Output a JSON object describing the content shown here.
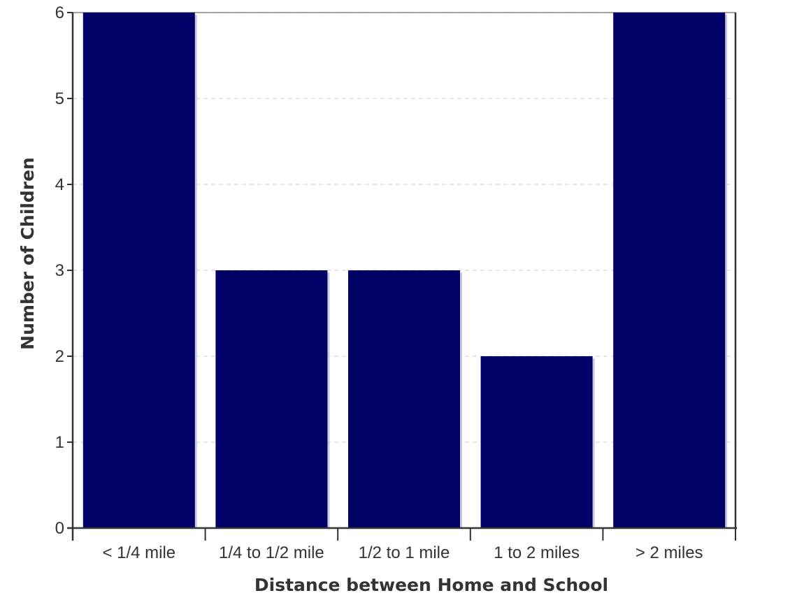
{
  "chart_data": {
    "type": "bar",
    "categories": [
      "< 1/4 mile",
      "1/4 to 1/2 mile",
      "1/2 to 1 mile",
      "1 to 2 miles",
      "> 2 miles"
    ],
    "values": [
      6,
      3,
      3,
      2,
      6
    ],
    "title": "",
    "xlabel": "Distance between Home and School",
    "ylabel": "Number of Children",
    "ylim": [
      0,
      6
    ],
    "yticks": [
      0,
      1,
      2,
      3,
      4,
      5,
      6
    ],
    "grid": "horizontal dashed",
    "legend": "none",
    "colors": {
      "bar": "#000066",
      "bar_shadow": "#c8c8dc",
      "axis": "#333333",
      "grid": "#dddddd"
    }
  }
}
